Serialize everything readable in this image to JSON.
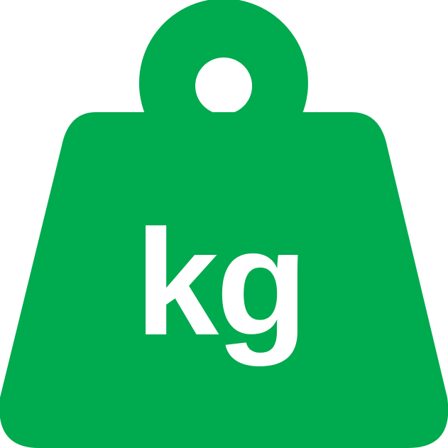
{
  "icon": {
    "name": "kilogram-weight-icon",
    "color": "#00AA4E",
    "background": "#FFFFFF",
    "label": "kg"
  }
}
